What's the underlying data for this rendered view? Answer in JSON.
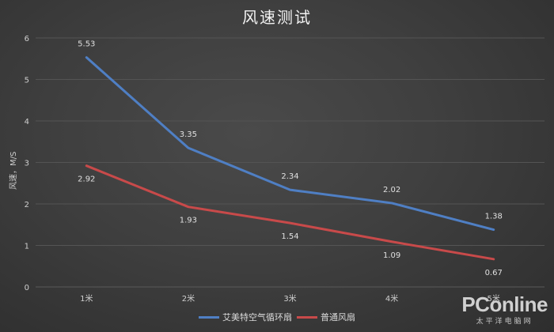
{
  "chart_data": {
    "type": "line",
    "title": "风速测试",
    "xlabel": "",
    "ylabel": "风速，M/S",
    "categories": [
      "1米",
      "2米",
      "3米",
      "4米",
      "5米"
    ],
    "series": [
      {
        "name": "艾美特空气循环扇",
        "color": "#4f7fc4",
        "values": [
          5.53,
          3.35,
          2.34,
          2.02,
          1.38
        ]
      },
      {
        "name": "普通风扇",
        "color": "#c84a4a",
        "values": [
          2.92,
          1.93,
          1.54,
          1.09,
          0.67
        ]
      }
    ],
    "ylim": [
      0,
      6
    ],
    "yticks": [
      0,
      1,
      2,
      3,
      4,
      5,
      6
    ],
    "grid": true,
    "legend_position": "bottom",
    "data_labels": true
  },
  "watermark": {
    "brand": "PConline",
    "subtitle": "太平洋电脑网"
  }
}
